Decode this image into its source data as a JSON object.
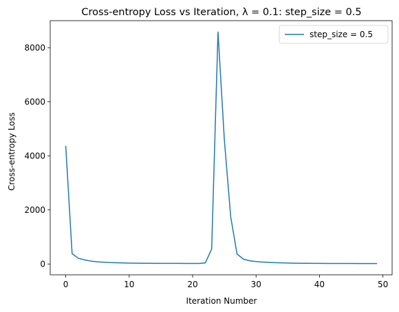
{
  "chart_data": {
    "type": "line",
    "title": "Cross-entropy Loss vs Iteration, λ = 0.1: step_size = 0.5",
    "xlabel": "Iteration Number",
    "ylabel": "Cross-entropy Loss",
    "xlim": [
      -2.45,
      51.45
    ],
    "ylim": [
      -400,
      9000
    ],
    "xticks": [
      0,
      10,
      20,
      30,
      40,
      50
    ],
    "yticks": [
      0,
      2000,
      4000,
      6000,
      8000
    ],
    "grid": false,
    "legend_position": "top-right",
    "series": [
      {
        "name": "step_size = 0.5",
        "color": "#1f77b4",
        "x": [
          0,
          1,
          2,
          3,
          4,
          5,
          6,
          7,
          8,
          9,
          10,
          11,
          12,
          13,
          14,
          15,
          16,
          17,
          18,
          19,
          20,
          21,
          22,
          23,
          24,
          25,
          26,
          27,
          28,
          29,
          30,
          31,
          32,
          33,
          34,
          35,
          36,
          37,
          38,
          39,
          40,
          41,
          42,
          43,
          44,
          45,
          46,
          47,
          48,
          49
        ],
        "y": [
          4350,
          380,
          210,
          150,
          105,
          80,
          65,
          52,
          45,
          38,
          33,
          30,
          28,
          26,
          25,
          24,
          23,
          22,
          22,
          21,
          20,
          20,
          40,
          550,
          8580,
          4600,
          1750,
          370,
          180,
          120,
          90,
          70,
          58,
          50,
          42,
          36,
          31,
          28,
          26,
          24,
          22,
          21,
          20,
          20,
          19,
          19,
          18,
          18,
          18,
          17
        ]
      }
    ]
  }
}
